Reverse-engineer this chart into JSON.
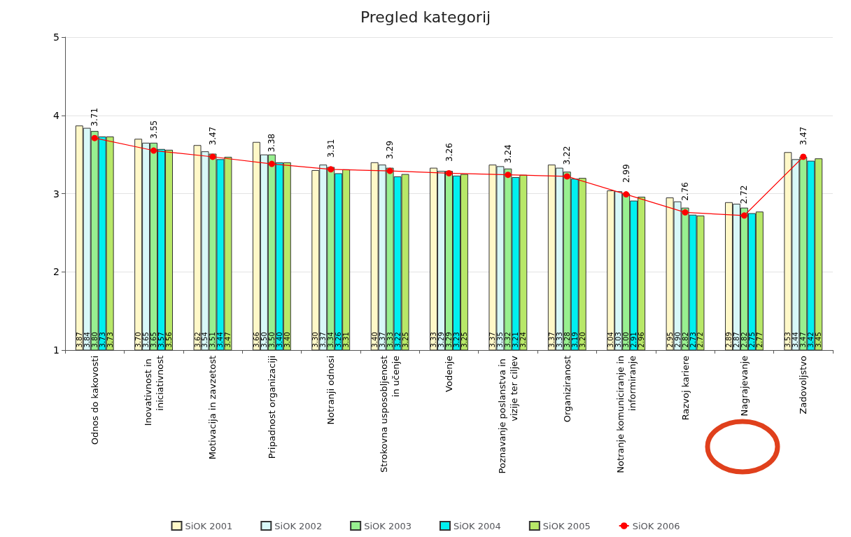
{
  "chart_data": {
    "type": "bar",
    "title": "Pregled kategorij",
    "categories": [
      "Odnos do kakovosti",
      "Inovativnost in iniciativnost",
      "Motivacija in zavzetost",
      "Pripadnost organizaciji",
      "Notranji odnosi",
      "Strokovna usposobljenost in učenje",
      "Vodenje",
      "Poznavanje poslanstva in vizije ter ciljev",
      "Organiziranost",
      "Notranje komuniciranje in informiranje",
      "Razvoj kariere",
      "Nagrajevanje",
      "Zadovoljstvo"
    ],
    "series": [
      {
        "name": "SiOK 2001",
        "color": "#fff8c8",
        "values": [
          3.87,
          3.7,
          3.62,
          3.66,
          3.3,
          3.4,
          3.33,
          3.37,
          3.37,
          3.04,
          2.95,
          2.89,
          3.53
        ],
        "value_labels": [
          "3.87",
          "3.70",
          "3.62",
          "3.66",
          "3.30",
          "3.40",
          "3.33",
          "3.37",
          "3.37",
          "3.04",
          "2.95",
          "2.89",
          "3.53"
        ]
      },
      {
        "name": "SiOK 2002",
        "color": "#d8f8f8",
        "values": [
          3.84,
          3.65,
          3.54,
          3.5,
          3.37,
          3.37,
          3.29,
          3.35,
          3.33,
          3.03,
          2.9,
          2.87,
          3.44
        ],
        "value_labels": [
          "3.84",
          "3.65",
          "3.54",
          "3.50",
          "3.37",
          "3.37",
          "3.29",
          "3.35",
          "3.33",
          "3.03",
          "2.90",
          "2.87",
          "3.44"
        ]
      },
      {
        "name": "SiOK 2003",
        "color": "#98f090",
        "values": [
          3.8,
          3.65,
          3.51,
          3.5,
          3.34,
          3.33,
          3.29,
          3.32,
          3.28,
          3.0,
          2.82,
          2.82,
          3.47
        ],
        "value_labels": [
          "3.80",
          "3.65",
          "3.51",
          "3.50",
          "3.34",
          "3.33",
          "3.29",
          "3.32",
          "3.28",
          "3.00",
          "2.82",
          "2.82",
          "3.47"
        ]
      },
      {
        "name": "SiOK 2004",
        "color": "#00f0f0",
        "values": [
          3.73,
          3.57,
          3.44,
          3.4,
          3.26,
          3.22,
          3.23,
          3.21,
          3.19,
          2.91,
          2.73,
          2.75,
          3.42
        ],
        "value_labels": [
          "3.73",
          "3.57",
          "3.44",
          "3.40",
          "3.26",
          "3.22",
          "3.23",
          "3.21",
          "3.19",
          "2.91",
          "2.73",
          "2.75",
          "3.42"
        ]
      },
      {
        "name": "SiOK 2005",
        "color": "#b8e868",
        "values": [
          3.73,
          3.56,
          3.47,
          3.4,
          3.31,
          3.25,
          3.25,
          3.24,
          3.2,
          2.96,
          2.72,
          2.77,
          3.45
        ],
        "value_labels": [
          "3.73",
          "3.56",
          "3.47",
          "3.40",
          "3.31",
          "3.25",
          "3.25",
          "3.24",
          "3.20",
          "2.96",
          "2.72",
          "2.77",
          "3.45"
        ]
      },
      {
        "name": "SiOK 2006",
        "type": "line",
        "color": "#ff0000",
        "marker": "circle",
        "values": [
          3.71,
          3.55,
          3.47,
          3.38,
          3.31,
          3.29,
          3.26,
          3.24,
          3.22,
          2.99,
          2.76,
          2.72,
          3.47
        ],
        "value_labels": [
          "3.71",
          "3.55",
          "3.47",
          "3.38",
          "3.31",
          "3.29",
          "3.26",
          "3.24",
          "3.22",
          "2.99",
          "2.76",
          "2.72",
          "3.47"
        ]
      }
    ],
    "ylim": [
      1,
      5
    ],
    "yticks": [
      1,
      2,
      3,
      4,
      5
    ],
    "grid": "y",
    "legend": "bottom"
  }
}
